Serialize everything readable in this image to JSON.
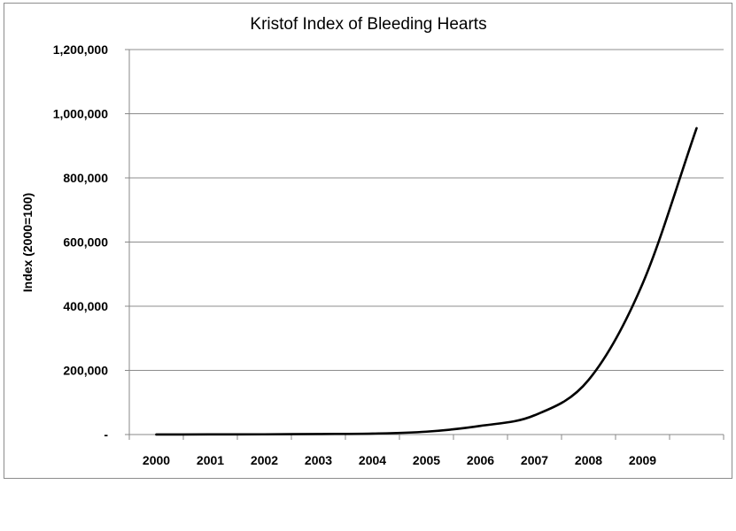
{
  "chart_data": {
    "type": "line",
    "title": "Kristof Index of Bleeding Hearts",
    "xlabel": "",
    "ylabel": "Index (2000=100)",
    "x_tick_labels": [
      "2000",
      "2001",
      "2002",
      "2003",
      "2004",
      "2005",
      "2006",
      "2007",
      "2008",
      "2009"
    ],
    "y_tick_labels": [
      "-",
      "200,000",
      "400,000",
      "600,000",
      "800,000",
      "1,000,000",
      "1,200,000"
    ],
    "y_tick_values": [
      0,
      200000,
      400000,
      600000,
      800000,
      1000000,
      1200000
    ],
    "ylim": [
      0,
      1200000
    ],
    "grid": true,
    "legend": "none",
    "line_color": "#000000",
    "series": [
      {
        "x": [
          2000,
          2001,
          2002,
          2003,
          2004,
          2005,
          2006,
          2007,
          2008,
          2009,
          2010
        ],
        "values": [
          100,
          400,
          700,
          1600,
          3000,
          9000,
          27000,
          60000,
          170000,
          470000,
          955000
        ]
      }
    ]
  }
}
